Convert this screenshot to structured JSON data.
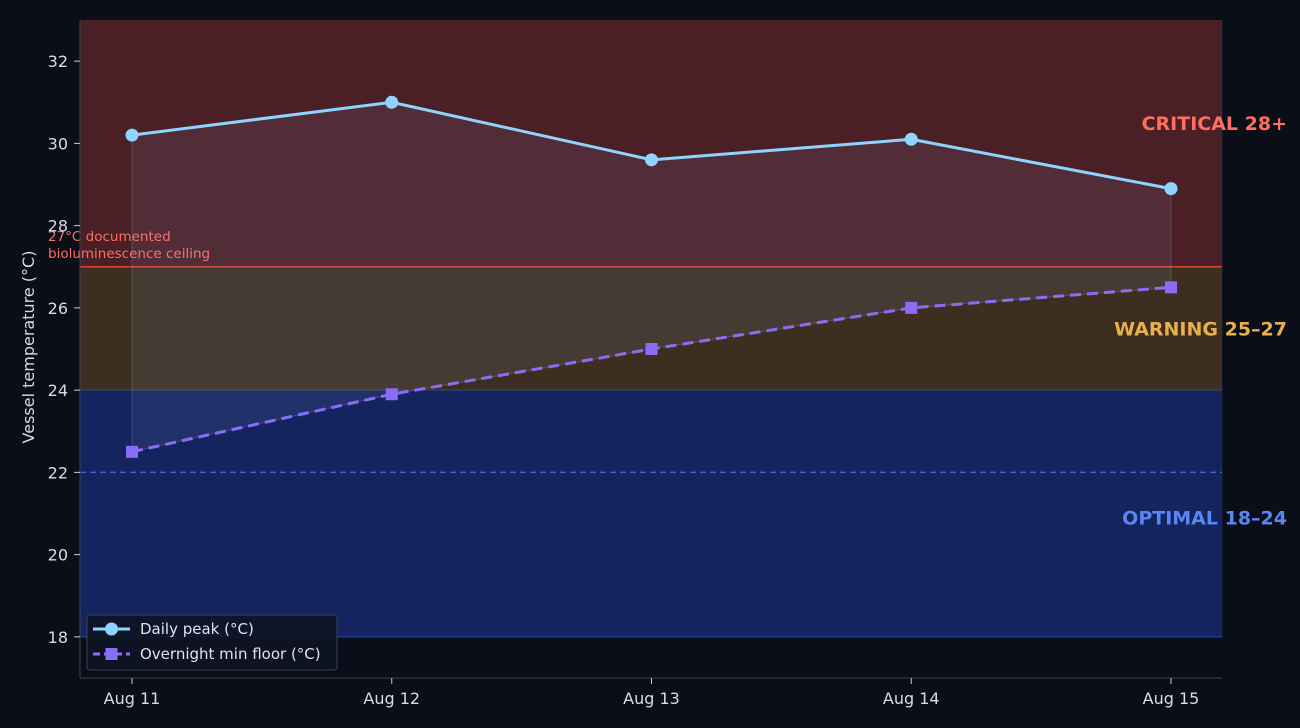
{
  "chart_data": {
    "type": "line",
    "categories": [
      "Aug 11",
      "Aug 12",
      "Aug 13",
      "Aug 14",
      "Aug 15"
    ],
    "ylabel": "Vessel temperature (°C)",
    "ylim": [
      17,
      33
    ],
    "yticks": [
      18,
      20,
      22,
      24,
      26,
      28,
      30,
      32
    ],
    "grid": false,
    "legend_position": "bottom-left",
    "series": [
      {
        "name": "Daily peak (°C)",
        "values": [
          30.2,
          31.0,
          29.6,
          30.1,
          28.9
        ],
        "color": "#8fd3ff",
        "marker": "circle",
        "style": "solid"
      },
      {
        "name": "Overnight min floor (°C)",
        "values": [
          22.5,
          23.9,
          25.0,
          26.0,
          26.5
        ],
        "color": "#8b6cf6",
        "marker": "square",
        "style": "dashed"
      }
    ],
    "bands": [
      {
        "label": "OPTIMAL 18–24",
        "from": 18,
        "to": 24,
        "color": "#13245e",
        "label_color": "#5b86f2"
      },
      {
        "label": "WARNING 25–27",
        "from": 24,
        "to": 27,
        "color": "#3d2e20",
        "label_color": "#e8b04a"
      },
      {
        "label": "CRITICAL 28+",
        "from": 27,
        "to": 33,
        "color": "#4a1f25",
        "label_color": "#ff6e60"
      }
    ],
    "reference_lines": [
      {
        "value": 27,
        "color": "#d9463a",
        "label": "27°C documented\nbioluminescence ceiling"
      },
      {
        "value": 22,
        "color": "#3a62c9",
        "label": ""
      }
    ]
  }
}
